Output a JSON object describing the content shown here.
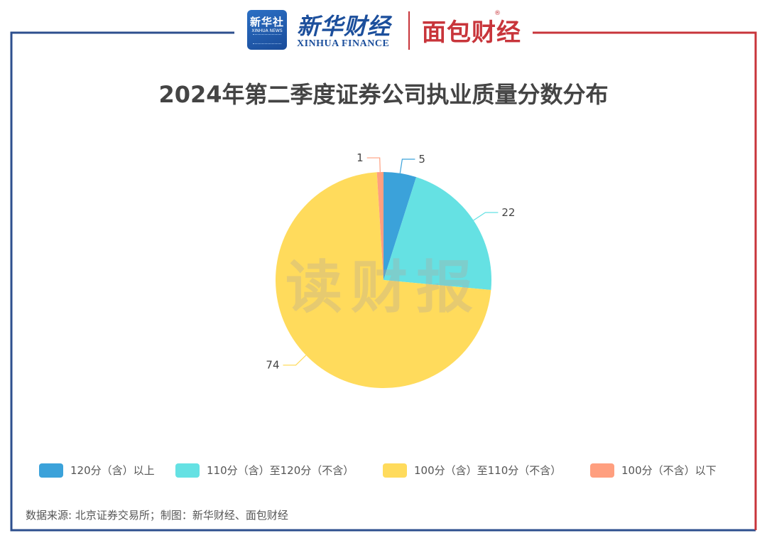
{
  "header": {
    "xinhua_badge_cn": "新华社",
    "xinhua_badge_en": "XINHUA NEWS",
    "xinhua_finance_cn": "新华财经",
    "xinhua_finance_en": "XINHUA FINANCE",
    "mianbao_logo": "面包财经"
  },
  "watermark": "读财报",
  "colors": {
    "frame_left": "#2d4f8e",
    "frame_right": "#c8353b"
  },
  "chart_data": {
    "type": "pie",
    "title": "2024年第二季度证券公司执业质量分数分布",
    "slices": [
      {
        "label": "120分（含）以上",
        "value": 5,
        "color": "#3ba2da"
      },
      {
        "label": "110分（含）至120分（不含）",
        "value": 22,
        "color": "#65e1e3"
      },
      {
        "label": "100分（含）至110分（不含）",
        "value": 74,
        "color": "#ffdb5c"
      },
      {
        "label": "100分（不含）以下",
        "value": 1,
        "color": "#ff9f7f"
      }
    ],
    "legend_position": "bottom"
  },
  "source": "数据来源: 北京证券交易所；制图：新华财经、面包财经"
}
